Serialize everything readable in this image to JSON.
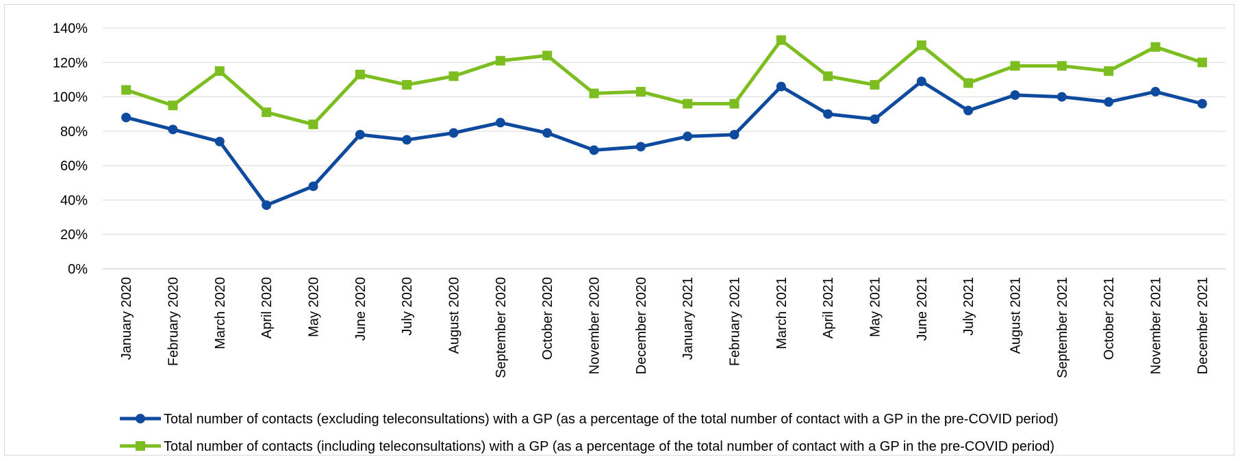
{
  "chart_data": {
    "type": "line",
    "categories": [
      "January 2020",
      "February 2020",
      "March 2020",
      "April 2020",
      "May 2020",
      "June 2020",
      "July 2020",
      "August 2020",
      "September 2020",
      "October 2020",
      "November 2020",
      "December 2020",
      "January 2021",
      "February 2021",
      "March 2021",
      "April 2021",
      "May 2021",
      "June 2021",
      "July 2021",
      "August 2021",
      "September 2021",
      "October 2021",
      "November 2021",
      "December 2021"
    ],
    "y_ticks": [
      "0%",
      "20%",
      "40%",
      "60%",
      "80%",
      "100%",
      "120%",
      "140%"
    ],
    "ylim": [
      0,
      140
    ],
    "y_unit": "percent",
    "grid": "horizontal",
    "legend_position": "bottom",
    "series": [
      {
        "name": "Total number of contacts (excluding teleconsultations) with a GP (as a percentage of the total number of contact with a GP in the pre-COVID period)",
        "color": "#0e4a9e",
        "marker": "circle",
        "values": [
          88,
          81,
          74,
          37,
          48,
          78,
          75,
          79,
          85,
          79,
          69,
          71,
          77,
          78,
          106,
          90,
          87,
          109,
          92,
          101,
          100,
          97,
          103,
          96
        ]
      },
      {
        "name": "Total number of contacts (including teleconsultations) with a GP (as a percentage of the total number of contact with a GP in the pre-COVID period)",
        "color": "#7cbd1f",
        "marker": "square",
        "values": [
          104,
          95,
          115,
          91,
          84,
          113,
          107,
          112,
          121,
          124,
          102,
          103,
          96,
          96,
          133,
          112,
          107,
          130,
          108,
          118,
          118,
          115,
          129,
          120
        ]
      }
    ]
  }
}
